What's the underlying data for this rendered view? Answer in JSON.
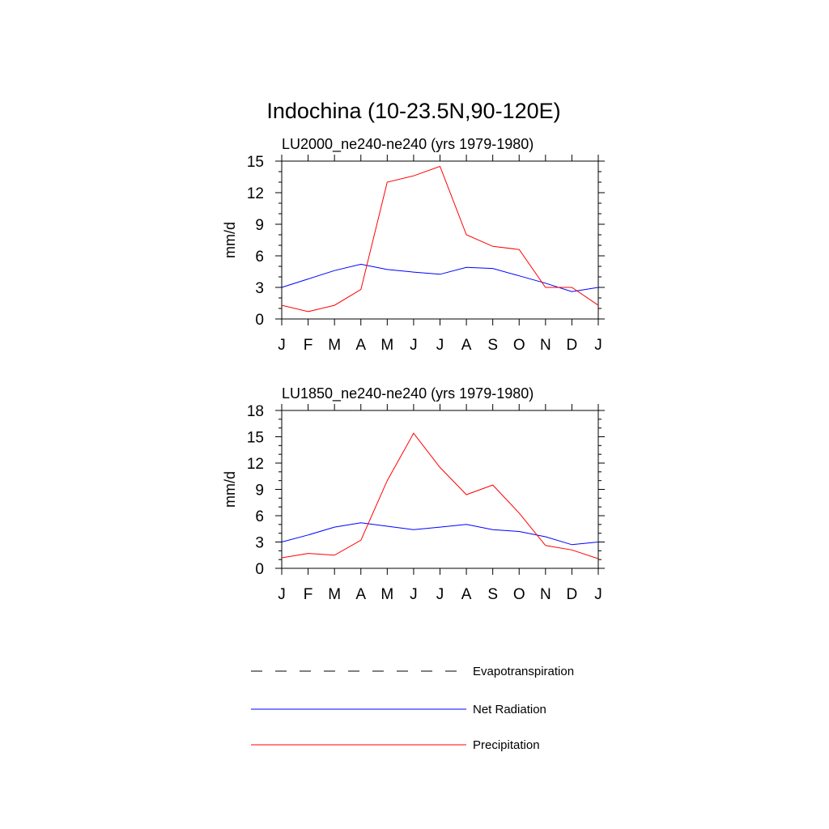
{
  "figure": {
    "title": "Indochina (10-23.5N,90-120E)"
  },
  "chart_data": [
    {
      "type": "line",
      "title": "LU2000_ne240-ne240 (yrs 1979-1980)",
      "xlabel": "",
      "ylabel": "mm/d",
      "categories": [
        "J",
        "F",
        "M",
        "A",
        "M",
        "J",
        "J",
        "A",
        "S",
        "O",
        "N",
        "D",
        "J"
      ],
      "ylim": [
        0,
        15
      ],
      "yticks": [
        0,
        3,
        6,
        9,
        12,
        15
      ],
      "grid": false,
      "series": [
        {
          "name": "Net Radiation",
          "color": "#0000ff",
          "style": "solid",
          "values": [
            3.0,
            3.8,
            4.6,
            5.2,
            4.7,
            4.45,
            4.25,
            4.9,
            4.8,
            4.1,
            3.4,
            2.6,
            3.0
          ]
        },
        {
          "name": "Precipitation",
          "color": "#ff0000",
          "style": "solid",
          "values": [
            1.3,
            0.7,
            1.3,
            2.8,
            13.0,
            13.6,
            14.5,
            8.0,
            6.9,
            6.6,
            3.0,
            3.0,
            1.3
          ]
        }
      ]
    },
    {
      "type": "line",
      "title": "LU1850_ne240-ne240 (yrs 1979-1980)",
      "xlabel": "",
      "ylabel": "mm/d",
      "categories": [
        "J",
        "F",
        "M",
        "A",
        "M",
        "J",
        "J",
        "A",
        "S",
        "O",
        "N",
        "D",
        "J"
      ],
      "ylim": [
        0,
        18
      ],
      "yticks": [
        0,
        3,
        6,
        9,
        12,
        15,
        18
      ],
      "grid": false,
      "series": [
        {
          "name": "Net Radiation",
          "color": "#0000ff",
          "style": "solid",
          "values": [
            3.0,
            3.8,
            4.7,
            5.2,
            4.8,
            4.4,
            4.7,
            5.0,
            4.4,
            4.2,
            3.6,
            2.7,
            3.0
          ]
        },
        {
          "name": "Precipitation",
          "color": "#ff0000",
          "style": "solid",
          "values": [
            1.2,
            1.7,
            1.5,
            3.2,
            10.0,
            15.4,
            11.5,
            8.4,
            9.5,
            6.3,
            2.6,
            2.1,
            1.1
          ]
        }
      ]
    }
  ],
  "legend": {
    "placement": "bottom",
    "items": [
      {
        "label": "Evapotranspiration",
        "color": "#000000",
        "style": "dashed"
      },
      {
        "label": "Net Radiation",
        "color": "#0000ff",
        "style": "solid"
      },
      {
        "label": "Precipitation",
        "color": "#ff0000",
        "style": "solid"
      }
    ]
  }
}
